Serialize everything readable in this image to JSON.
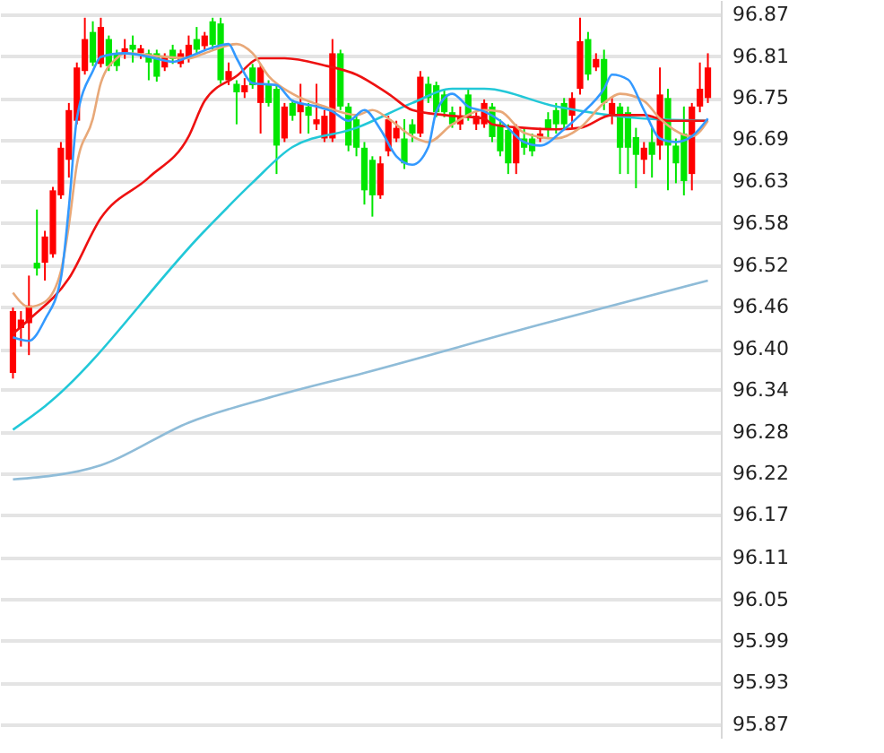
{
  "chart_data": {
    "type": "candlestick",
    "categories": [
      null,
      null,
      null,
      null,
      null,
      null,
      null,
      null,
      null,
      null,
      null,
      null,
      null,
      null,
      null,
      null,
      null,
      null,
      null,
      null,
      null,
      null,
      null,
      null,
      null,
      null,
      null,
      null,
      null,
      null,
      null,
      null,
      null,
      null,
      null,
      null,
      null,
      null,
      null,
      null,
      null,
      null,
      null,
      null,
      null,
      null,
      null,
      null,
      null,
      null,
      null,
      null,
      null,
      null,
      null,
      null,
      null,
      null,
      null,
      null,
      null,
      null,
      null,
      null,
      null,
      null,
      null,
      null,
      null,
      null,
      null,
      null,
      null,
      null,
      null,
      null,
      null,
      null,
      null,
      null,
      null,
      null,
      null,
      null,
      null,
      null,
      null,
      null
    ],
    "ohlc": [
      [
        96.365,
        96.457,
        96.357,
        96.452
      ],
      [
        96.428,
        96.452,
        96.402,
        96.44
      ],
      [
        96.435,
        96.502,
        96.39,
        96.46
      ],
      [
        96.52,
        96.595,
        96.502,
        96.512
      ],
      [
        96.52,
        96.565,
        96.495,
        96.557
      ],
      [
        96.532,
        96.627,
        96.527,
        96.622
      ],
      [
        96.615,
        96.69,
        96.61,
        96.682
      ],
      [
        96.665,
        96.745,
        96.64,
        96.735
      ],
      [
        96.72,
        96.802,
        96.715,
        96.795
      ],
      [
        96.79,
        96.865,
        96.785,
        96.835
      ],
      [
        96.845,
        96.86,
        96.797,
        96.802
      ],
      [
        96.8,
        96.865,
        96.795,
        96.852
      ],
      [
        96.835,
        96.84,
        96.79,
        96.797
      ],
      [
        96.815,
        96.82,
        96.79,
        96.797
      ],
      [
        96.815,
        96.835,
        96.807,
        96.822
      ],
      [
        96.827,
        96.84,
        96.802,
        96.82
      ],
      [
        96.815,
        96.827,
        96.807,
        96.822
      ],
      [
        96.815,
        96.82,
        96.777,
        96.802
      ],
      [
        96.815,
        96.82,
        96.775,
        96.782
      ],
      [
        96.795,
        96.815,
        96.79,
        96.81
      ],
      [
        96.82,
        96.827,
        96.8,
        96.807
      ],
      [
        96.8,
        96.82,
        96.795,
        96.815
      ],
      [
        96.81,
        96.84,
        96.802,
        96.827
      ],
      [
        96.835,
        96.852,
        96.815,
        96.82
      ],
      [
        96.825,
        96.845,
        96.82,
        96.84
      ],
      [
        96.86,
        96.865,
        96.82,
        96.827
      ],
      [
        96.857,
        96.865,
        96.772,
        96.777
      ],
      [
        96.777,
        96.802,
        96.77,
        96.79
      ],
      [
        96.772,
        96.777,
        96.715,
        96.76
      ],
      [
        96.76,
        96.78,
        96.752,
        96.77
      ],
      [
        96.795,
        96.8,
        96.765,
        96.77
      ],
      [
        96.745,
        96.8,
        96.702,
        96.795
      ],
      [
        96.772,
        96.777,
        96.74,
        96.745
      ],
      [
        96.765,
        96.77,
        96.645,
        96.685
      ],
      [
        96.695,
        96.745,
        96.69,
        96.74
      ],
      [
        96.745,
        96.75,
        96.72,
        96.727
      ],
      [
        96.732,
        96.772,
        96.702,
        96.745
      ],
      [
        96.74,
        96.745,
        96.702,
        96.727
      ],
      [
        96.715,
        96.772,
        96.707,
        96.722
      ],
      [
        96.695,
        96.735,
        96.69,
        96.727
      ],
      [
        96.695,
        96.835,
        96.69,
        96.815
      ],
      [
        96.815,
        96.82,
        96.735,
        96.74
      ],
      [
        96.74,
        96.745,
        96.677,
        96.685
      ],
      [
        96.722,
        96.727,
        96.67,
        96.682
      ],
      [
        96.682,
        96.69,
        96.602,
        96.622
      ],
      [
        96.665,
        96.67,
        96.585,
        96.615
      ],
      [
        96.615,
        96.67,
        96.61,
        96.66
      ],
      [
        96.677,
        96.727,
        96.67,
        96.722
      ],
      [
        96.695,
        96.72,
        96.69,
        96.71
      ],
      [
        96.695,
        96.722,
        96.652,
        96.66
      ],
      [
        96.715,
        96.722,
        96.69,
        96.702
      ],
      [
        96.702,
        96.79,
        96.697,
        96.782
      ],
      [
        96.772,
        96.782,
        96.745,
        96.752
      ],
      [
        96.77,
        96.775,
        96.725,
        96.732
      ],
      [
        96.757,
        96.765,
        96.725,
        96.732
      ],
      [
        96.732,
        96.74,
        96.71,
        96.715
      ],
      [
        96.715,
        96.74,
        96.707,
        96.727
      ],
      [
        96.757,
        96.765,
        96.72,
        96.727
      ],
      [
        96.715,
        96.732,
        96.707,
        96.727
      ],
      [
        96.715,
        96.75,
        96.71,
        96.745
      ],
      [
        96.74,
        96.745,
        96.69,
        96.697
      ],
      [
        96.715,
        96.722,
        96.67,
        96.677
      ],
      [
        96.707,
        96.715,
        96.645,
        96.66
      ],
      [
        96.66,
        96.715,
        96.645,
        96.71
      ],
      [
        96.695,
        96.71,
        96.672,
        96.682
      ],
      [
        96.695,
        96.702,
        96.67,
        96.677
      ],
      [
        96.695,
        96.71,
        96.69,
        96.702
      ],
      [
        96.722,
        96.732,
        96.695,
        96.707
      ],
      [
        96.735,
        96.745,
        96.702,
        96.715
      ],
      [
        96.745,
        96.752,
        96.707,
        96.715
      ],
      [
        96.727,
        96.76,
        96.71,
        96.752
      ],
      [
        96.765,
        96.865,
        96.757,
        96.832
      ],
      [
        96.835,
        96.845,
        96.777,
        96.785
      ],
      [
        96.795,
        96.815,
        96.79,
        96.807
      ],
      [
        96.807,
        96.82,
        96.735,
        96.745
      ],
      [
        96.727,
        96.752,
        96.715,
        96.745
      ],
      [
        96.74,
        96.745,
        96.645,
        96.682
      ],
      [
        96.732,
        96.74,
        96.645,
        96.682
      ],
      [
        96.697,
        96.71,
        96.625,
        96.672
      ],
      [
        96.665,
        96.69,
        96.645,
        96.682
      ],
      [
        96.69,
        96.71,
        96.64,
        96.672
      ],
      [
        96.685,
        96.795,
        96.665,
        96.757
      ],
      [
        96.752,
        96.765,
        96.622,
        96.685
      ],
      [
        96.685,
        96.695,
        96.632,
        96.66
      ],
      [
        96.702,
        96.74,
        96.615,
        96.635
      ],
      [
        96.645,
        96.745,
        96.622,
        96.74
      ],
      [
        96.74,
        96.802,
        96.732,
        96.765
      ],
      [
        96.752,
        96.815,
        96.745,
        96.795
      ]
    ],
    "colors": [
      "#ff0000",
      "#ff0000",
      "#ff0000",
      "#00e600",
      "#ff0000",
      "#ff0000",
      "#ff0000",
      "#ff0000",
      "#ff0000",
      "#ff0000",
      "#00e600",
      "#ff0000",
      "#00e600",
      "#00e600",
      "#ff0000",
      "#00e600",
      "#ff0000",
      "#00e600",
      "#00e600",
      "#ff0000",
      "#00e600",
      "#ff0000",
      "#ff0000",
      "#00e600",
      "#ff0000",
      "#00e600",
      "#00e600",
      "#ff0000",
      "#00e600",
      "#ff0000",
      "#00e600",
      "#ff0000",
      "#00e600",
      "#00e600",
      "#ff0000",
      "#00e600",
      "#ff0000",
      "#00e600",
      "#ff0000",
      "#ff0000",
      "#ff0000",
      "#00e600",
      "#00e600",
      "#00e600",
      "#00e600",
      "#00e600",
      "#ff0000",
      "#ff0000",
      "#ff0000",
      "#00e600",
      "#00e600",
      "#ff0000",
      "#00e600",
      "#00e600",
      "#00e600",
      "#00e600",
      "#ff0000",
      "#00e600",
      "#ff0000",
      "#ff0000",
      "#00e600",
      "#00e600",
      "#00e600",
      "#ff0000",
      "#00e600",
      "#00e600",
      "#ff0000",
      "#00e600",
      "#00e600",
      "#00e600",
      "#ff0000",
      "#ff0000",
      "#00e600",
      "#ff0000",
      "#00e600",
      "#ff0000",
      "#00e600",
      "#00e600",
      "#00e600",
      "#ff0000",
      "#00e600",
      "#ff0000",
      "#00e600",
      "#00e600",
      "#00e600",
      "#ff0000",
      "#ff0000",
      "#ff0000"
    ],
    "series": [
      {
        "type": "line",
        "color": "#8fbcd8",
        "values": [
          96.215,
          null,
          null,
          null,
          null,
          null,
          null,
          null,
          null,
          null,
          null,
          96.235,
          null,
          null,
          null,
          null,
          null,
          null,
          null,
          null,
          null,
          null,
          96.295,
          null,
          null,
          null,
          null,
          null,
          null,
          null,
          null,
          null,
          null,
          96.333,
          null,
          null,
          null,
          null,
          null,
          null,
          null,
          null,
          null,
          null,
          96.365,
          null,
          null,
          null,
          null,
          null,
          null,
          null,
          null,
          null,
          null,
          null,
          null,
          null,
          null,
          null,
          null,
          null,
          null,
          null,
          null,
          null,
          96.433,
          null,
          null,
          null,
          null,
          null,
          null,
          null,
          null,
          null,
          null,
          null,
          null,
          null,
          null,
          null,
          null,
          null,
          null,
          null,
          null,
          96.495
        ]
      },
      {
        "type": "line",
        "color": "#22c8d8",
        "values": [
          96.285,
          null,
          null,
          null,
          96.318,
          null,
          null,
          null,
          null,
          null,
          null,
          null,
          null,
          null,
          null,
          null,
          null,
          null,
          null,
          null,
          null,
          null,
          null,
          null,
          96.565,
          null,
          null,
          null,
          null,
          null,
          96.633,
          null,
          null,
          null,
          null,
          96.683,
          null,
          null,
          null,
          null,
          null,
          null,
          null,
          96.71,
          null,
          null,
          null,
          null,
          null,
          null,
          96.745,
          null,
          null,
          null,
          null,
          96.765,
          null,
          null,
          null,
          96.765,
          null,
          null,
          null,
          null,
          null,
          null,
          null,
          null,
          96.74,
          null,
          null,
          null,
          null,
          null,
          null,
          null,
          null,
          null,
          null,
          96.723,
          null,
          null,
          null,
          null,
          null,
          null,
          null,
          96.72
        ]
      },
      {
        "type": "line",
        "color": "#ee1111",
        "values": [
          96.42,
          null,
          96.44,
          null,
          null,
          null,
          null,
          96.498,
          null,
          null,
          null,
          96.583,
          null,
          null,
          null,
          null,
          null,
          96.64,
          null,
          null,
          null,
          null,
          96.698,
          null,
          96.748,
          null,
          null,
          null,
          96.783,
          null,
          null,
          96.808,
          null,
          null,
          96.808,
          null,
          null,
          null,
          null,
          96.798,
          null,
          null,
          null,
          96.785,
          null,
          null,
          null,
          96.758,
          null,
          null,
          96.735,
          null,
          null,
          null,
          96.728,
          null,
          null,
          null,
          null,
          96.723,
          96.715,
          null,
          null,
          null,
          96.71,
          null,
          null,
          null,
          96.708,
          null,
          null,
          96.71,
          null,
          null,
          null,
          96.728,
          null,
          null,
          null,
          96.728,
          null,
          null,
          96.72,
          null,
          null,
          null,
          null,
          96.72
        ]
      },
      {
        "type": "line",
        "color": "#e8a878",
        "values": [
          96.478,
          null,
          96.458,
          null,
          96.465,
          null,
          96.508,
          96.573,
          96.658,
          null,
          96.723,
          96.773,
          null,
          96.808,
          96.815,
          null,
          null,
          null,
          null,
          96.81,
          null,
          null,
          96.808,
          null,
          96.815,
          null,
          null,
          null,
          96.828,
          null,
          96.815,
          null,
          96.783,
          null,
          null,
          96.758,
          null,
          null,
          null,
          96.74,
          null,
          null,
          null,
          96.728,
          null,
          96.735,
          null,
          96.723,
          null,
          null,
          96.698,
          null,
          96.69,
          null,
          null,
          96.715,
          null,
          null,
          null,
          96.735,
          null,
          96.733,
          null,
          null,
          96.703,
          null,
          null,
          null,
          96.695,
          null,
          null,
          96.71,
          null,
          null,
          96.745,
          null,
          96.758,
          null,
          null,
          96.748,
          null,
          96.723,
          null,
          null,
          null,
          96.698,
          null,
          96.72
        ]
      },
      {
        "type": "line",
        "color": "#3399ff",
        "values": [
          96.415,
          null,
          96.41,
          null,
          96.44,
          null,
          96.498,
          96.598,
          96.723,
          null,
          96.79,
          96.81,
          null,
          null,
          96.815,
          null,
          null,
          96.81,
          null,
          null,
          96.803,
          null,
          96.81,
          null,
          null,
          96.823,
          null,
          96.828,
          96.808,
          null,
          96.773,
          null,
          null,
          96.77,
          null,
          96.748,
          null,
          null,
          96.74,
          null,
          96.733,
          null,
          96.72,
          null,
          96.735,
          null,
          96.708,
          null,
          96.67,
          null,
          96.658,
          null,
          96.683,
          96.733,
          null,
          96.758,
          null,
          96.74,
          null,
          96.733,
          null,
          96.72,
          null,
          null,
          96.69,
          null,
          96.685,
          null,
          null,
          96.708,
          null,
          96.728,
          null,
          null,
          96.765,
          96.785,
          null,
          96.778,
          null,
          96.735,
          null,
          96.695,
          null,
          96.69,
          null,
          96.698,
          null,
          96.723
        ]
      }
    ],
    "ylim": [
      95.85,
      96.89
    ],
    "yticks": [
      {
        "value": 96.87,
        "label": "96.87"
      },
      {
        "value": 96.811,
        "label": "96.81"
      },
      {
        "value": 96.752,
        "label": "96.75"
      },
      {
        "value": 96.694,
        "label": "96.69"
      },
      {
        "value": 96.635,
        "label": "96.63"
      },
      {
        "value": 96.576,
        "label": "96.58"
      },
      {
        "value": 96.517,
        "label": "96.52"
      },
      {
        "value": 96.458,
        "label": "96.46"
      },
      {
        "value": 96.399,
        "label": "96.40"
      },
      {
        "value": 96.341,
        "label": "96.34"
      },
      {
        "value": 96.282,
        "label": "96.28"
      },
      {
        "value": 96.223,
        "label": "96.22"
      },
      {
        "value": 96.165,
        "label": "96.17"
      },
      {
        "value": 96.105,
        "label": "96.11"
      },
      {
        "value": 96.046,
        "label": "96.05"
      },
      {
        "value": 95.988,
        "label": "95.99"
      },
      {
        "value": 95.929,
        "label": "95.93"
      },
      {
        "value": 95.87,
        "label": "95.87"
      }
    ],
    "grid": "y",
    "tick_labels": "y"
  }
}
